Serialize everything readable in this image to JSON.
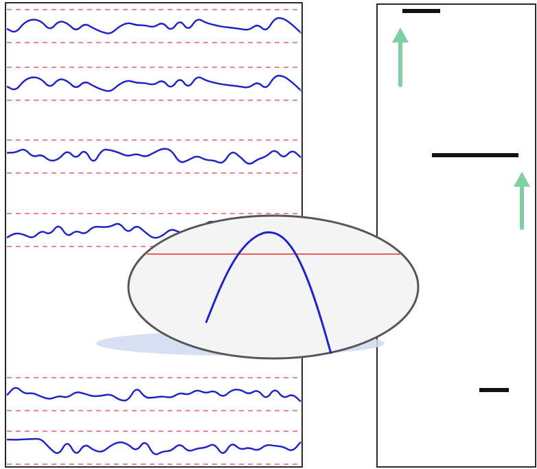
{
  "colors": {
    "background": "#ffffff",
    "panel_border": "#2a2a2a",
    "signal": "#1f22c8",
    "threshold": "#e06060",
    "marker": "#111111",
    "arrow": "#7fd0a0",
    "lens_border": "#555555",
    "lens_fill": "#f4f4f4",
    "shadow": "#cfdaf0"
  },
  "left_panel": {
    "traces": [
      {
        "seed": 11
      },
      {
        "seed": 11
      },
      {
        "seed": 27
      },
      {
        "seed": 43
      },
      {
        "seed": 59
      },
      {
        "seed": 71
      }
    ]
  },
  "magnifier": {
    "content": "peak-over-threshold"
  },
  "right_panel": {
    "markers": 3,
    "arrows": 2
  }
}
